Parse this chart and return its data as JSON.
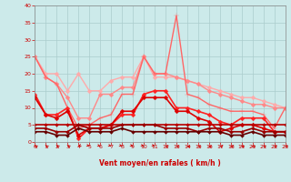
{
  "xlabel": "Vent moyen/en rafales ( km/h )",
  "background_color": "#cceaea",
  "grid_color": "#aacccc",
  "xlim": [
    0,
    23
  ],
  "ylim": [
    0,
    40
  ],
  "yticks": [
    0,
    5,
    10,
    15,
    20,
    25,
    30,
    35,
    40
  ],
  "xticks": [
    0,
    1,
    2,
    3,
    4,
    5,
    6,
    7,
    8,
    9,
    10,
    11,
    12,
    13,
    14,
    15,
    16,
    17,
    18,
    19,
    20,
    21,
    22,
    23
  ],
  "lines": [
    {
      "x": [
        0,
        1,
        2,
        3,
        4,
        5,
        6,
        7,
        8,
        9,
        10,
        11,
        12,
        13,
        14,
        15,
        16,
        17,
        18,
        19,
        20,
        21,
        22,
        23
      ],
      "y": [
        25,
        20,
        20,
        15,
        20,
        15,
        15,
        18,
        19,
        19,
        25,
        19,
        19,
        19,
        18,
        17,
        16,
        15,
        14,
        13,
        13,
        12,
        11,
        10
      ],
      "color": "#ffaaaa",
      "lw": 1.0,
      "marker": "D",
      "ms": 2.5
    },
    {
      "x": [
        0,
        1,
        2,
        3,
        4,
        5,
        6,
        7,
        8,
        9,
        10,
        11,
        12,
        13,
        14,
        15,
        16,
        17,
        18,
        19,
        20,
        21,
        22,
        23
      ],
      "y": [
        25,
        19,
        17,
        13,
        7,
        7,
        14,
        14,
        16,
        16,
        25,
        20,
        20,
        19,
        18,
        17,
        15,
        14,
        13,
        12,
        11,
        11,
        10,
        10
      ],
      "color": "#ff8888",
      "lw": 1.0,
      "marker": "D",
      "ms": 2.5
    },
    {
      "x": [
        0,
        1,
        2,
        3,
        4,
        5,
        6,
        7,
        8,
        9,
        10,
        11,
        12,
        13,
        14,
        15,
        16,
        17,
        18,
        19,
        20,
        21,
        22,
        23
      ],
      "y": [
        25,
        19,
        17,
        10,
        4,
        5,
        7,
        8,
        14,
        14,
        25,
        20,
        20,
        37,
        14,
        13,
        11,
        10,
        9,
        9,
        9,
        8,
        4,
        10
      ],
      "color": "#ff6666",
      "lw": 1.0,
      "marker": "+",
      "ms": 4
    },
    {
      "x": [
        0,
        1,
        2,
        3,
        4,
        5,
        6,
        7,
        8,
        9,
        10,
        11,
        12,
        13,
        14,
        15,
        16,
        17,
        18,
        19,
        20,
        21,
        22,
        23
      ],
      "y": [
        14,
        8,
        8,
        10,
        1,
        4,
        4,
        5,
        8,
        8,
        14,
        15,
        15,
        10,
        10,
        9,
        8,
        6,
        5,
        7,
        7,
        7,
        3,
        3
      ],
      "color": "#ff2222",
      "lw": 1.2,
      "marker": "D",
      "ms": 2.5
    },
    {
      "x": [
        0,
        1,
        2,
        3,
        4,
        5,
        6,
        7,
        8,
        9,
        10,
        11,
        12,
        13,
        14,
        15,
        16,
        17,
        18,
        19,
        20,
        21,
        22,
        23
      ],
      "y": [
        13,
        8,
        7,
        9,
        2,
        4,
        4,
        5,
        9,
        9,
        13,
        13,
        13,
        9,
        9,
        7,
        6,
        3,
        4,
        5,
        5,
        4,
        3,
        3
      ],
      "color": "#dd0000",
      "lw": 1.2,
      "marker": "D",
      "ms": 2.5
    },
    {
      "x": [
        0,
        1,
        2,
        3,
        4,
        5,
        6,
        7,
        8,
        9,
        10,
        11,
        12,
        13,
        14,
        15,
        16,
        17,
        18,
        19,
        20,
        21,
        22,
        23
      ],
      "y": [
        5,
        5,
        5,
        5,
        5,
        5,
        5,
        5,
        5,
        5,
        5,
        5,
        5,
        5,
        5,
        5,
        5,
        5,
        5,
        5,
        5,
        5,
        5,
        5
      ],
      "color": "#bb0000",
      "lw": 1.2,
      "marker": "D",
      "ms": 2.0
    },
    {
      "x": [
        0,
        1,
        2,
        3,
        4,
        5,
        6,
        7,
        8,
        9,
        10,
        11,
        12,
        13,
        14,
        15,
        16,
        17,
        18,
        19,
        20,
        21,
        22,
        23
      ],
      "y": [
        4,
        4,
        3,
        3,
        5,
        4,
        4,
        4,
        5,
        5,
        5,
        5,
        4,
        4,
        4,
        3,
        4,
        4,
        3,
        3,
        4,
        3,
        3,
        3
      ],
      "color": "#990000",
      "lw": 1.2,
      "marker": "D",
      "ms": 2.0
    },
    {
      "x": [
        0,
        1,
        2,
        3,
        4,
        5,
        6,
        7,
        8,
        9,
        10,
        11,
        12,
        13,
        14,
        15,
        16,
        17,
        18,
        19,
        20,
        21,
        22,
        23
      ],
      "y": [
        3,
        3,
        2,
        2,
        4,
        3,
        3,
        3,
        4,
        3,
        3,
        3,
        3,
        3,
        3,
        3,
        3,
        3,
        2,
        2,
        3,
        2,
        2,
        2
      ],
      "color": "#660000",
      "lw": 1.2,
      "marker": "D",
      "ms": 2.0
    }
  ],
  "wind_arrows_x": [
    0,
    1,
    2,
    3,
    4,
    5,
    6,
    7,
    8,
    9,
    10,
    11,
    12,
    13,
    14,
    15,
    16,
    17,
    18,
    19,
    20,
    21,
    22,
    23
  ],
  "wind_arrow_dirs": [
    225,
    225,
    225,
    225,
    315,
    45,
    45,
    45,
    45,
    45,
    45,
    45,
    225,
    225,
    225,
    225,
    225,
    225,
    225,
    225,
    225,
    225,
    225,
    225
  ]
}
